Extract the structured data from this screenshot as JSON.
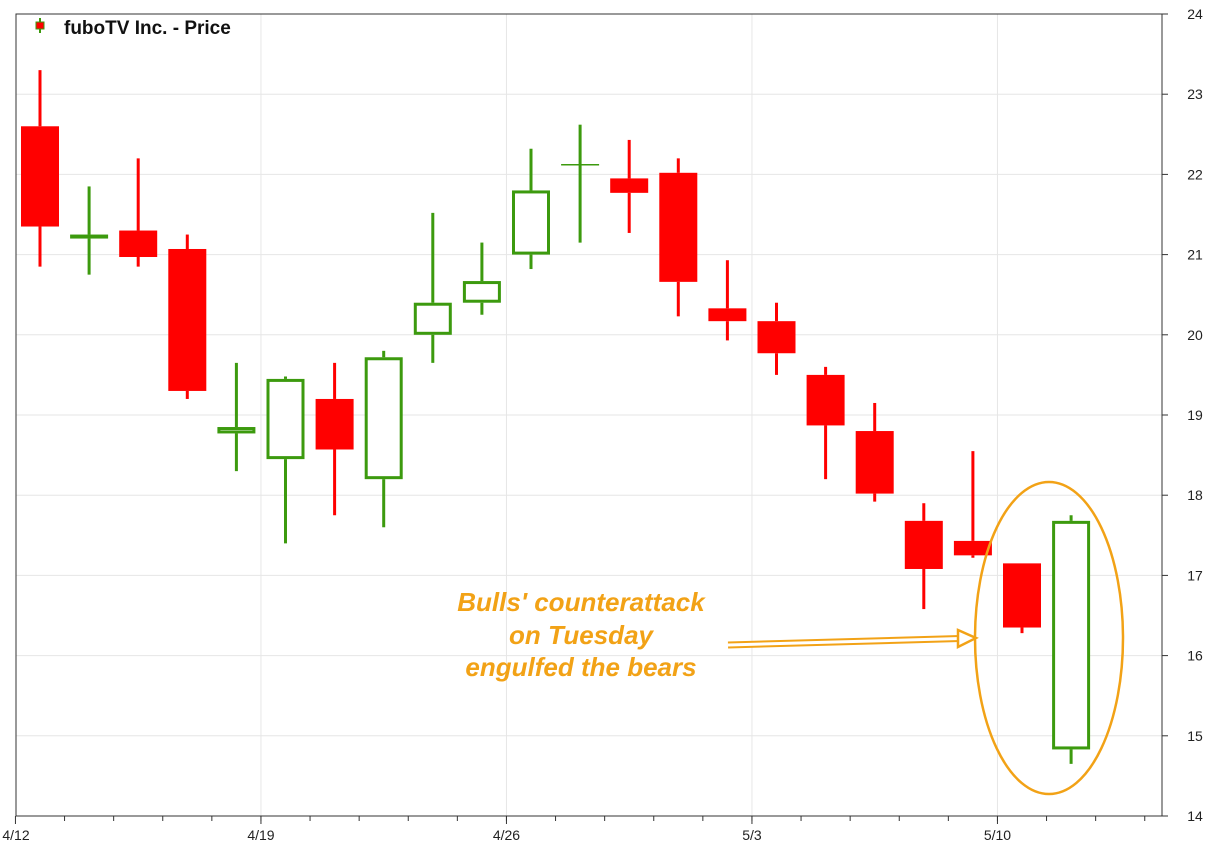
{
  "chart_data": {
    "type": "candlestick",
    "title": "fuboTV Inc. - Price",
    "legend_position": "top-left",
    "grid": true,
    "colors": {
      "up": "#3c9a0e",
      "down": "#ff0000",
      "annotation": "#f2a216"
    },
    "x_tick_labels": [
      "4/12",
      "4/19",
      "4/26",
      "5/3",
      "5/10"
    ],
    "y_ticks": [
      14,
      15,
      16,
      17,
      18,
      19,
      20,
      21,
      22,
      23,
      24
    ],
    "ylim": [
      14,
      24
    ],
    "candles": [
      {
        "date": "4/12",
        "open": 22.6,
        "high": 23.3,
        "low": 20.85,
        "close": 21.35
      },
      {
        "date": "4/13",
        "open": 21.2,
        "high": 21.85,
        "low": 20.75,
        "close": 21.25
      },
      {
        "date": "4/14",
        "open": 21.3,
        "high": 22.2,
        "low": 20.85,
        "close": 20.97
      },
      {
        "date": "4/15",
        "open": 21.07,
        "high": 21.25,
        "low": 19.2,
        "close": 19.3
      },
      {
        "date": "4/16",
        "open": 18.77,
        "high": 19.65,
        "low": 18.3,
        "close": 18.85
      },
      {
        "date": "4/19",
        "open": 18.45,
        "high": 19.48,
        "low": 17.4,
        "close": 19.45
      },
      {
        "date": "4/20",
        "open": 19.2,
        "high": 19.65,
        "low": 17.75,
        "close": 18.57
      },
      {
        "date": "4/21",
        "open": 18.2,
        "high": 19.8,
        "low": 17.6,
        "close": 19.72
      },
      {
        "date": "4/22",
        "open": 20.0,
        "high": 21.52,
        "low": 19.65,
        "close": 20.4
      },
      {
        "date": "4/23",
        "open": 20.4,
        "high": 21.15,
        "low": 20.25,
        "close": 20.67
      },
      {
        "date": "4/26",
        "open": 21.0,
        "high": 22.32,
        "low": 20.82,
        "close": 21.8
      },
      {
        "date": "4/27",
        "open": 22.12,
        "high": 22.62,
        "low": 21.15,
        "close": 22.12
      },
      {
        "date": "4/28",
        "open": 21.95,
        "high": 22.43,
        "low": 21.27,
        "close": 21.77
      },
      {
        "date": "4/29",
        "open": 22.02,
        "high": 22.2,
        "low": 20.23,
        "close": 20.66
      },
      {
        "date": "4/30",
        "open": 20.33,
        "high": 20.93,
        "low": 19.93,
        "close": 20.17
      },
      {
        "date": "5/3",
        "open": 20.17,
        "high": 20.4,
        "low": 19.5,
        "close": 19.77
      },
      {
        "date": "5/4",
        "open": 19.5,
        "high": 19.6,
        "low": 18.2,
        "close": 18.87
      },
      {
        "date": "5/5",
        "open": 18.8,
        "high": 19.15,
        "low": 17.92,
        "close": 18.02
      },
      {
        "date": "5/6",
        "open": 17.68,
        "high": 17.9,
        "low": 16.58,
        "close": 17.08
      },
      {
        "date": "5/7",
        "open": 17.43,
        "high": 18.55,
        "low": 17.22,
        "close": 17.25
      },
      {
        "date": "5/10",
        "open": 17.15,
        "high": 17.15,
        "low": 16.28,
        "close": 16.35
      },
      {
        "date": "5/11",
        "open": 14.83,
        "high": 17.75,
        "low": 14.65,
        "close": 17.68
      }
    ],
    "annotation": {
      "lines": [
        "Bulls' counterattack",
        "on Tuesday",
        "engulfed the bears"
      ]
    }
  }
}
